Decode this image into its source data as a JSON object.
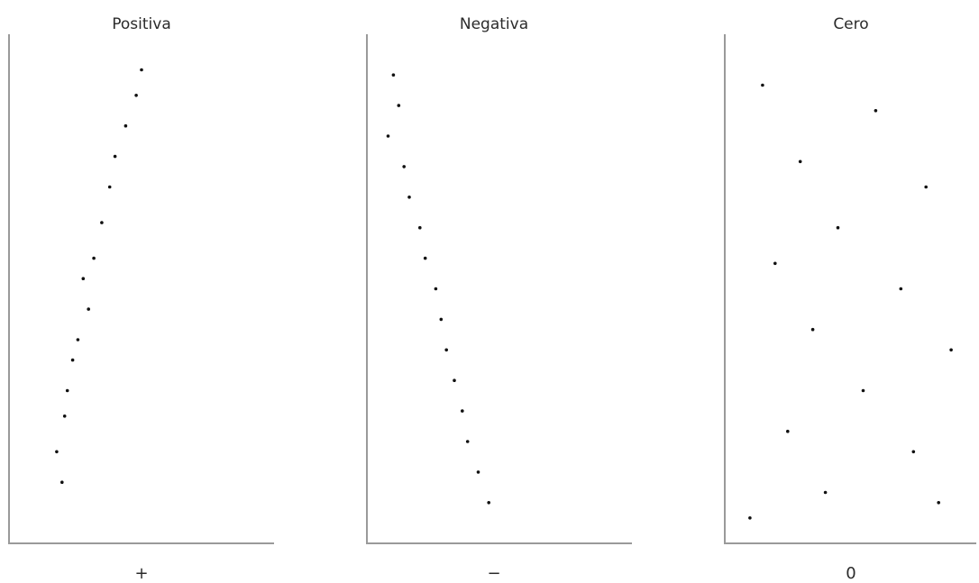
{
  "chart_data": [
    {
      "type": "scatter",
      "title": "Positiva",
      "xlabel": "+",
      "correlation": "positive",
      "axis_ticks": false,
      "grid": false,
      "points": [
        [
          0.2,
          0.12
        ],
        [
          0.18,
          0.18
        ],
        [
          0.21,
          0.25
        ],
        [
          0.22,
          0.3
        ],
        [
          0.24,
          0.36
        ],
        [
          0.26,
          0.4
        ],
        [
          0.3,
          0.46
        ],
        [
          0.28,
          0.52
        ],
        [
          0.32,
          0.56
        ],
        [
          0.35,
          0.63
        ],
        [
          0.38,
          0.7
        ],
        [
          0.4,
          0.76
        ],
        [
          0.44,
          0.82
        ],
        [
          0.48,
          0.88
        ],
        [
          0.5,
          0.93
        ]
      ]
    },
    {
      "type": "scatter",
      "title": "Negativa",
      "xlabel": "−",
      "correlation": "negative",
      "axis_ticks": false,
      "grid": false,
      "points": [
        [
          0.1,
          0.92
        ],
        [
          0.12,
          0.86
        ],
        [
          0.08,
          0.8
        ],
        [
          0.14,
          0.74
        ],
        [
          0.16,
          0.68
        ],
        [
          0.2,
          0.62
        ],
        [
          0.22,
          0.56
        ],
        [
          0.26,
          0.5
        ],
        [
          0.28,
          0.44
        ],
        [
          0.3,
          0.38
        ],
        [
          0.33,
          0.32
        ],
        [
          0.36,
          0.26
        ],
        [
          0.38,
          0.2
        ],
        [
          0.42,
          0.14
        ],
        [
          0.46,
          0.08
        ]
      ]
    },
    {
      "type": "scatter",
      "title": "Cero",
      "xlabel": "0",
      "correlation": "none",
      "axis_ticks": false,
      "grid": false,
      "points": [
        [
          0.15,
          0.9
        ],
        [
          0.6,
          0.85
        ],
        [
          0.3,
          0.75
        ],
        [
          0.8,
          0.7
        ],
        [
          0.45,
          0.62
        ],
        [
          0.2,
          0.55
        ],
        [
          0.7,
          0.5
        ],
        [
          0.35,
          0.42
        ],
        [
          0.9,
          0.38
        ],
        [
          0.55,
          0.3
        ],
        [
          0.25,
          0.22
        ],
        [
          0.75,
          0.18
        ],
        [
          0.4,
          0.1
        ],
        [
          0.85,
          0.08
        ],
        [
          0.1,
          0.05
        ]
      ]
    }
  ]
}
